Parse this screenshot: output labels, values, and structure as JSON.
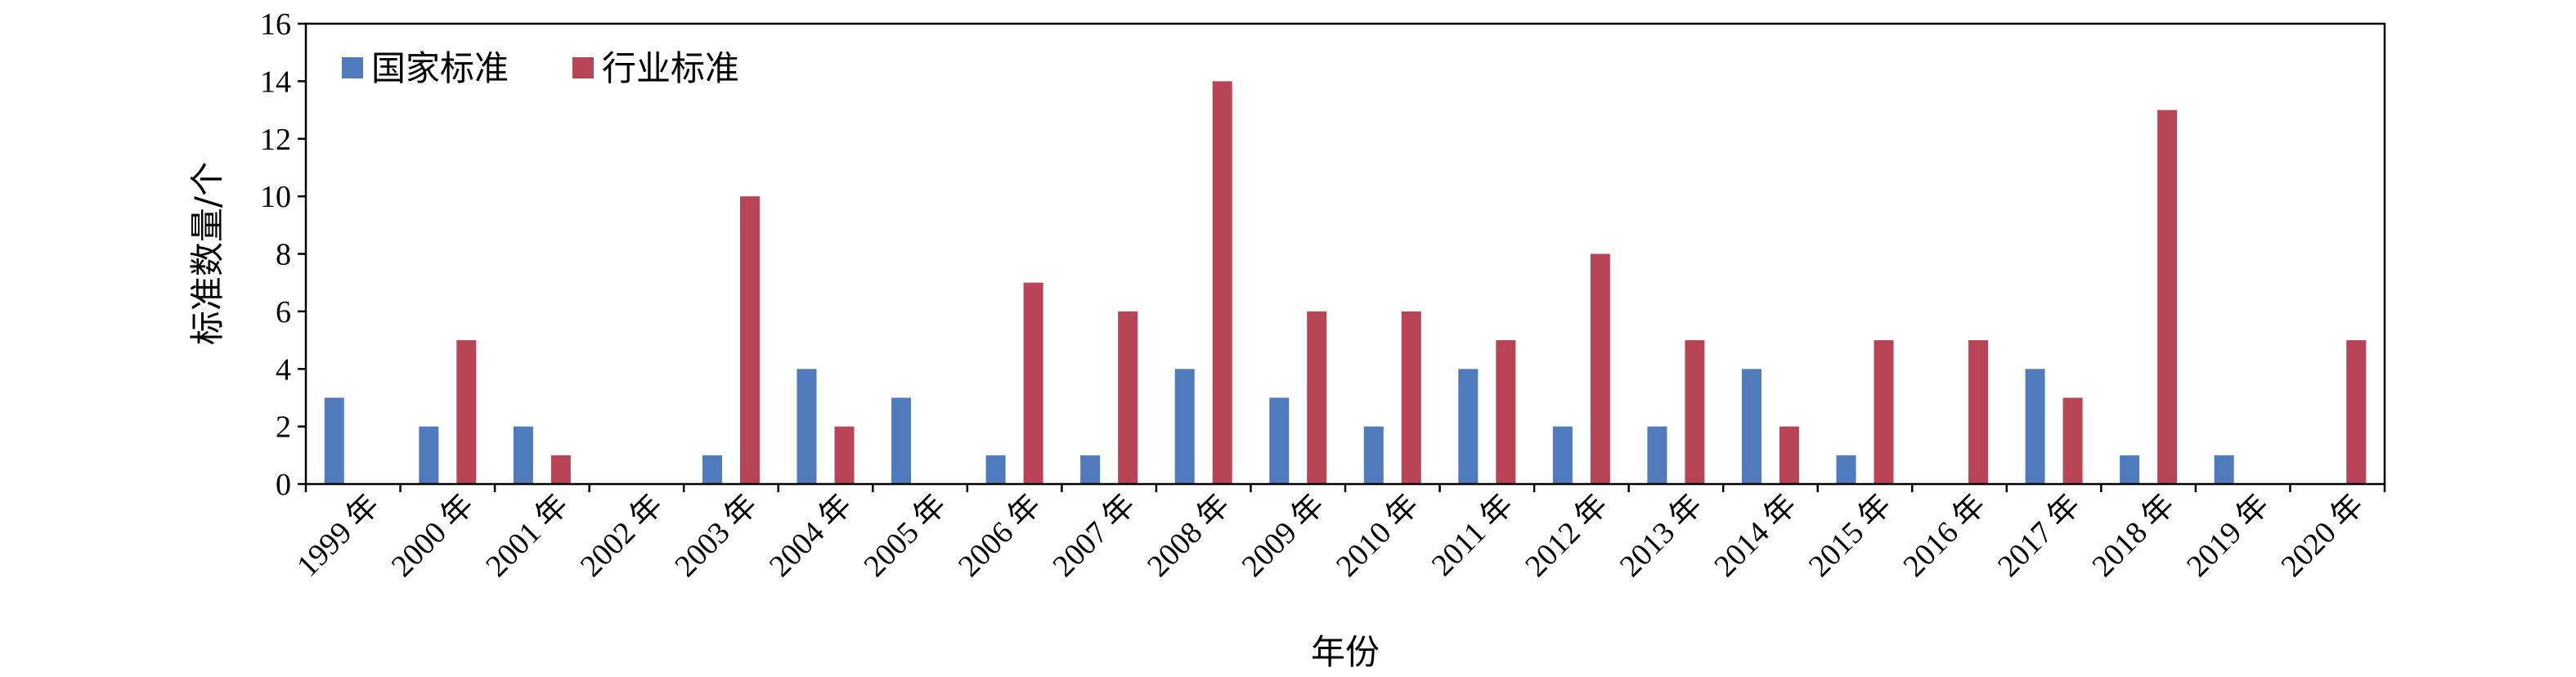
{
  "chart_data": {
    "type": "bar",
    "title": "",
    "xlabel": "年份",
    "ylabel": "标准数量/个",
    "ylim": [
      0,
      16
    ],
    "yticks": [
      0,
      2,
      4,
      6,
      8,
      10,
      12,
      14,
      16
    ],
    "grid": false,
    "legend_position": "top-left",
    "categories": [
      "1999 年",
      "2000 年",
      "2001 年",
      "2002 年",
      "2003 年",
      "2004 年",
      "2005 年",
      "2006 年",
      "2007 年",
      "2008 年",
      "2009 年",
      "2010 年",
      "2011 年",
      "2012 年",
      "2013 年",
      "2014 年",
      "2015 年",
      "2016 年",
      "2017 年",
      "2018 年",
      "2019 年",
      "2020 年"
    ],
    "series": [
      {
        "name": "国家标准",
        "color": "#4f7bbd",
        "values": [
          3,
          2,
          2,
          0,
          1,
          4,
          3,
          1,
          1,
          4,
          3,
          2,
          4,
          2,
          2,
          4,
          1,
          0,
          4,
          1,
          1,
          0
        ]
      },
      {
        "name": "行业标准",
        "color": "#b84455",
        "values": [
          0,
          5,
          1,
          0,
          10,
          2,
          0,
          7,
          6,
          14,
          6,
          6,
          5,
          8,
          5,
          2,
          5,
          5,
          3,
          13,
          0,
          5
        ]
      }
    ]
  }
}
